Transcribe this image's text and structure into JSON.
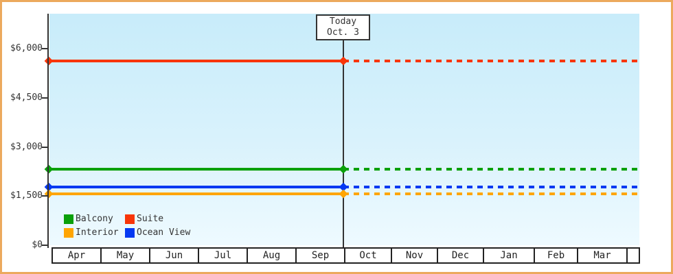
{
  "window": {
    "background": "#ffffff",
    "frame_color": "#eca95d"
  },
  "chart_data": {
    "type": "line",
    "title": "",
    "description": "Cabin price by category over months; lines are solid up to today's date and dotted (projected) afterward",
    "today_box": {
      "line1": "Today",
      "line2": "Oct. 3"
    },
    "today_position": "boundary between Sep and Oct columns",
    "grid": false,
    "legend_position": "bottom-left inside plot",
    "y_axis": {
      "ylim": [
        0,
        7050
      ],
      "ticks": [
        {
          "label": "$6,000",
          "value": 6000
        },
        {
          "label": "$4,500",
          "value": 4500
        },
        {
          "label": "$3,000",
          "value": 3000
        },
        {
          "label": "$1,500",
          "value": 1500
        },
        {
          "label": "$0",
          "value": 0
        }
      ]
    },
    "x_axis": {
      "months": [
        "Apr",
        "May",
        "Jun",
        "Jul",
        "Aug",
        "Sep",
        "Oct",
        "Nov",
        "Dec",
        "Jan",
        "Feb",
        "Mar"
      ]
    },
    "series": [
      {
        "name": "Suite",
        "color": "#f83508",
        "value": 5625
      },
      {
        "name": "Balcony",
        "color": "#0aa00a",
        "value": 2325
      },
      {
        "name": "Ocean View",
        "color": "#0539f2",
        "value": 1775
      },
      {
        "name": "Interior",
        "color": "#ffa502",
        "value": 1575
      }
    ]
  },
  "legend": {
    "rows": [
      [
        {
          "label": "Balcony",
          "color": "#0aa00a"
        },
        {
          "label": "Suite",
          "color": "#f83508"
        }
      ],
      [
        {
          "label": "Interior",
          "color": "#ffa502"
        },
        {
          "label": "Ocean View",
          "color": "#0539f2"
        }
      ]
    ]
  }
}
